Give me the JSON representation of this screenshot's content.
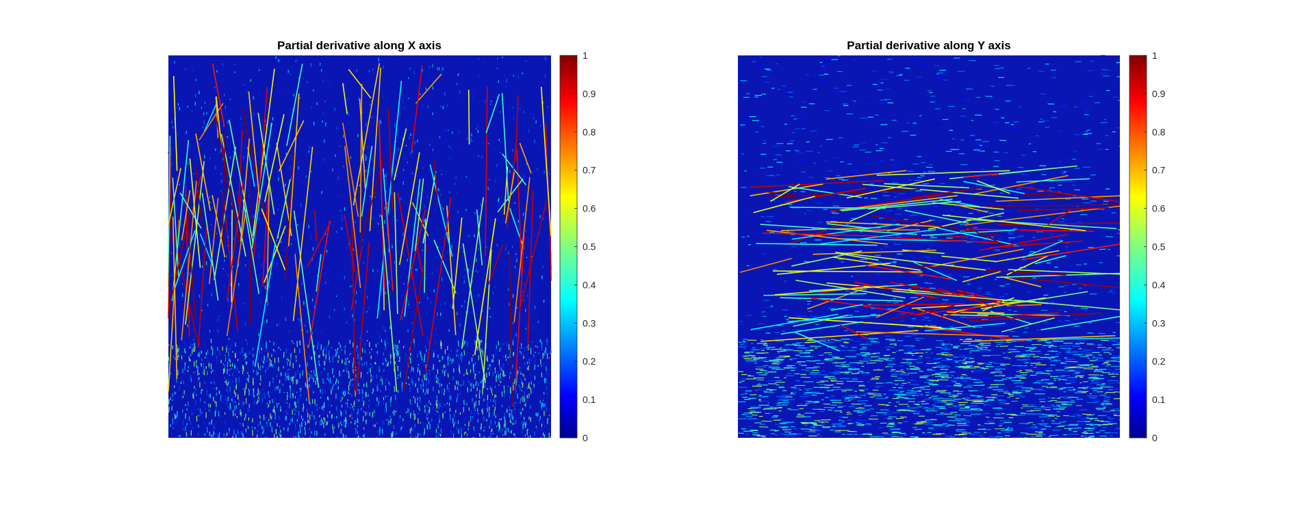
{
  "chart_data": [
    {
      "type": "heatmap",
      "title": "Partial derivative along X axis",
      "xlabel": "",
      "ylabel": "",
      "colormap": "jet",
      "clim": [
        0,
        1
      ],
      "colorbar_ticks": [
        "0",
        "0.1",
        "0.2",
        "0.3",
        "0.4",
        "0.5",
        "0.6",
        "0.7",
        "0.8",
        "0.9",
        "1"
      ],
      "axis_visible": false,
      "edge_orientation": "vertical"
    },
    {
      "type": "heatmap",
      "title": "Partial derivative along Y axis",
      "xlabel": "",
      "ylabel": "",
      "colormap": "jet",
      "clim": [
        0,
        1
      ],
      "colorbar_ticks": [
        "0",
        "0.1",
        "0.2",
        "0.3",
        "0.4",
        "0.5",
        "0.6",
        "0.7",
        "0.8",
        "0.9",
        "1"
      ],
      "axis_visible": false,
      "edge_orientation": "horizontal"
    }
  ],
  "colors": {
    "background": "#ffffff",
    "jet_low": "#00008f",
    "jet_mid": "#80ff80",
    "jet_high": "#800000"
  }
}
